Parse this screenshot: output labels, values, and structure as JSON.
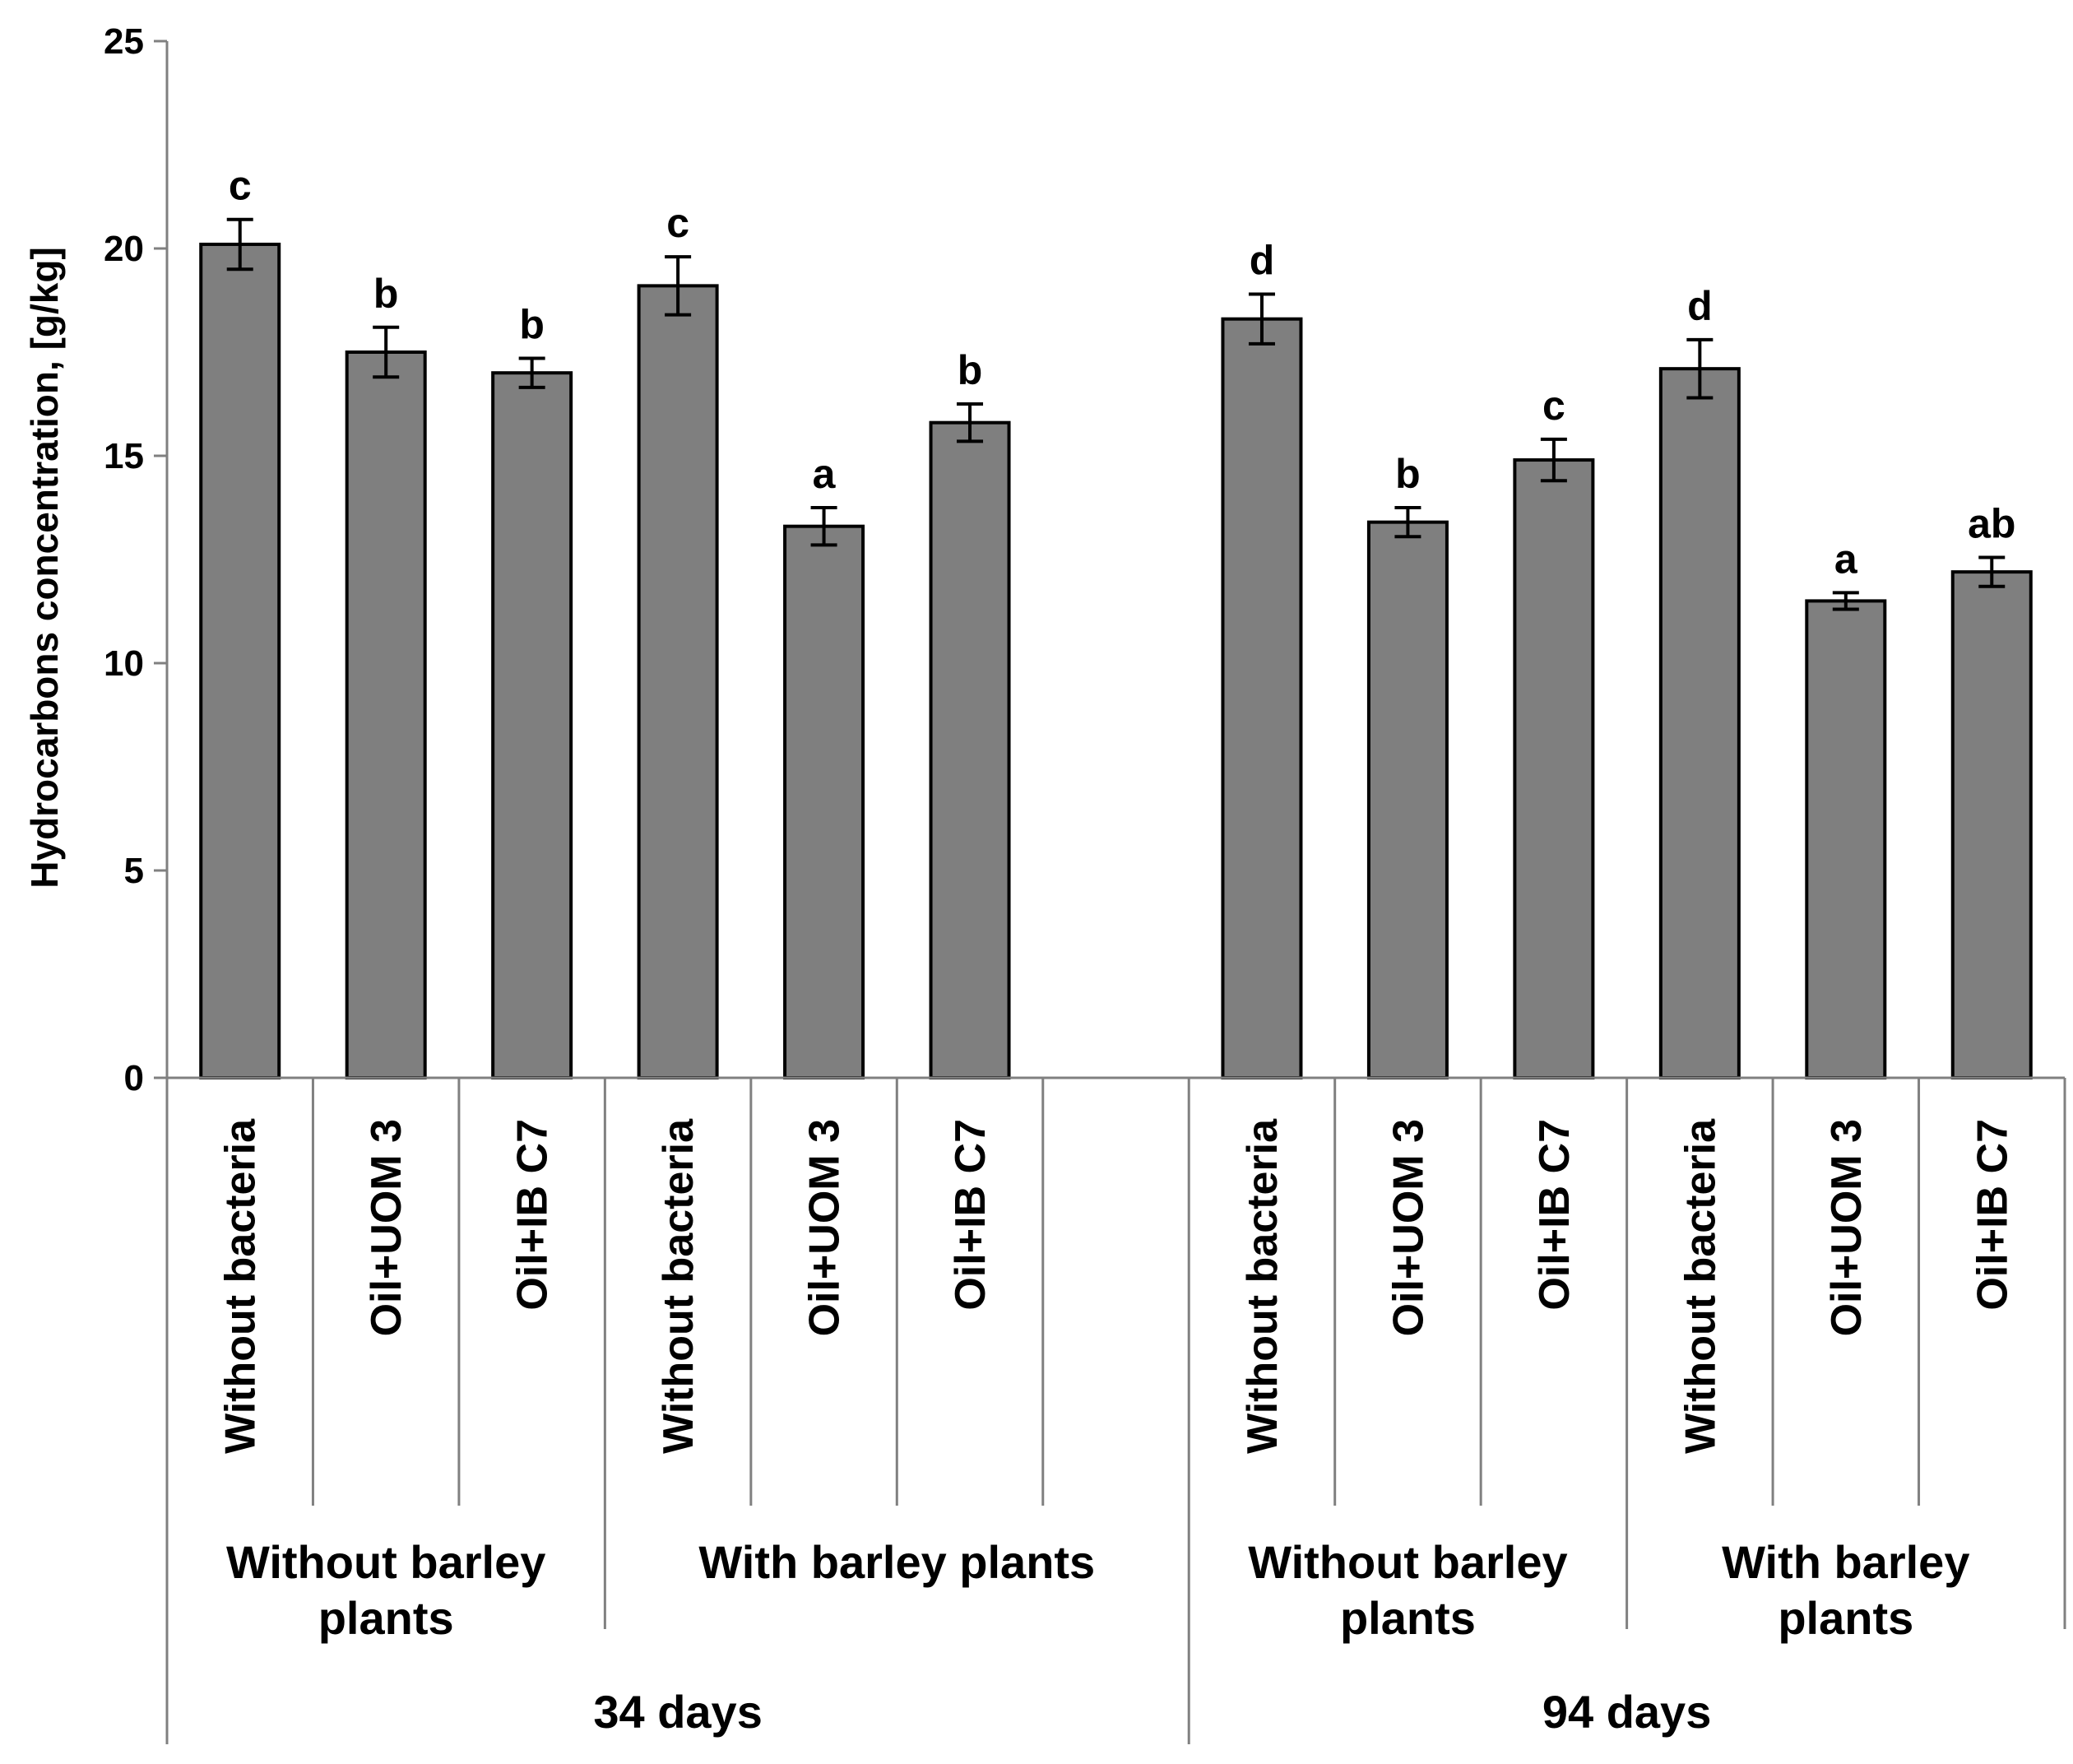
{
  "chart_data": {
    "type": "bar",
    "title": "",
    "xlabel": "",
    "ylabel": "Hydrocarbons  concentration,  [g/kg]",
    "ylim": [
      0,
      25
    ],
    "yticks": [
      0,
      5,
      10,
      15,
      20,
      25
    ],
    "grid": false,
    "color": "#7f7f7f",
    "categories": [
      "Without bacteria",
      "Oil+UOM 3",
      "Oil+IB C7",
      "Without bacteria",
      "Oil+UOM 3",
      "Oil+IB C7",
      "",
      "Without bacteria",
      "Oil+UOM 3",
      "Oil+IB C7",
      "Without bacteria",
      "Oil+UOM 3",
      "Oil+IB C7"
    ],
    "values": [
      20.1,
      17.5,
      17.0,
      19.1,
      13.3,
      15.8,
      null,
      18.3,
      13.4,
      14.9,
      17.1,
      11.5,
      12.2
    ],
    "errors": [
      0.6,
      0.6,
      0.35,
      0.7,
      0.45,
      0.45,
      null,
      0.6,
      0.35,
      0.5,
      0.7,
      0.2,
      0.35
    ],
    "significance": [
      "c",
      "b",
      "b",
      "c",
      "a",
      "b",
      "",
      "d",
      "b",
      "c",
      "d",
      "a",
      "ab"
    ],
    "plant_groups": [
      {
        "label": "Without barley plants",
        "start": 0,
        "end": 3
      },
      {
        "label": "With barley plants",
        "start": 3,
        "end": 7
      },
      {
        "label": "Without barley plants",
        "start": 7,
        "end": 10
      },
      {
        "label": "With barley plants",
        "start": 10,
        "end": 13
      }
    ],
    "time_groups": [
      {
        "label": "34 days",
        "start": 0,
        "end": 7
      },
      {
        "label": "94 days",
        "start": 7,
        "end": 13
      }
    ]
  }
}
